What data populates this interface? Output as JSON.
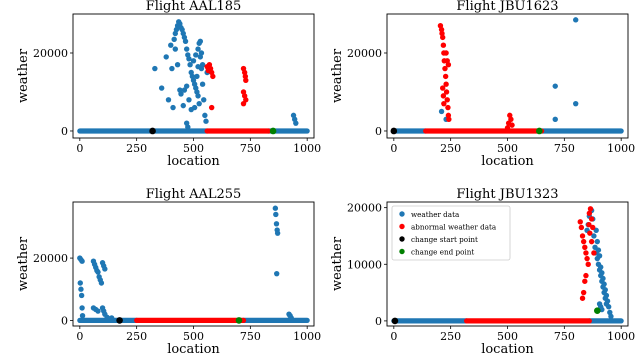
{
  "figure": {
    "legend": {
      "entries": [
        {
          "label": "weather data",
          "color": "#1f77b4"
        },
        {
          "label": "abnormal weather data",
          "color": "#ff0000"
        },
        {
          "label": "change start point",
          "color": "#000000"
        },
        {
          "label": "change end point",
          "color": "#008000"
        }
      ]
    }
  },
  "chart_data": [
    {
      "type": "scatter",
      "title": "Flight AAL185",
      "xlabel": "location",
      "ylabel": "weather",
      "xlim": [
        -30,
        1030
      ],
      "ylim": [
        -1800,
        30000
      ],
      "xticks": [
        0,
        250,
        500,
        750,
        1000
      ],
      "yticks": [
        0,
        20000
      ],
      "grid": false,
      "legend": "none",
      "normal_baseline": [
        [
          0,
          560
        ],
        [
          830,
          1000
        ]
      ],
      "abnormal_baseline": [
        [
          560,
          830
        ]
      ],
      "series": [
        {
          "label": "weather data",
          "color": "#1f77b4",
          "points": [
            [
              330,
              16000
            ],
            [
              360,
              11000
            ],
            [
              380,
              19000
            ],
            [
              390,
              8000
            ],
            [
              400,
              22000
            ],
            [
              405,
              16000
            ],
            [
              410,
              6000
            ],
            [
              415,
              23500
            ],
            [
              420,
              25000
            ],
            [
              425,
              26000
            ],
            [
              430,
              27000
            ],
            [
              435,
              28000
            ],
            [
              440,
              27500
            ],
            [
              445,
              26500
            ],
            [
              450,
              26000
            ],
            [
              455,
              25000
            ],
            [
              460,
              24000
            ],
            [
              465,
              23000
            ],
            [
              470,
              21000
            ],
            [
              475,
              19500
            ],
            [
              480,
              18500
            ],
            [
              485,
              17000
            ],
            [
              490,
              15000
            ],
            [
              495,
              14000
            ],
            [
              500,
              13000
            ],
            [
              505,
              12000
            ],
            [
              510,
              11000
            ],
            [
              515,
              10000
            ],
            [
              520,
              9000
            ],
            [
              525,
              7000
            ],
            [
              505,
              6000
            ],
            [
              490,
              5500
            ],
            [
              480,
              8000
            ],
            [
              470,
              11500
            ],
            [
              460,
              10500
            ],
            [
              455,
              6500
            ],
            [
              470,
              2000
            ],
            [
              475,
              1000
            ],
            [
              430,
              17000
            ],
            [
              420,
              21000
            ],
            [
              445,
              9500
            ],
            [
              440,
              10500
            ],
            [
              500,
              18000
            ],
            [
              510,
              19500
            ],
            [
              520,
              21000
            ],
            [
              525,
              22500
            ],
            [
              530,
              19000
            ],
            [
              535,
              16000
            ],
            [
              540,
              12000
            ],
            [
              545,
              8000
            ],
            [
              550,
              4000
            ],
            [
              555,
              2500
            ],
            [
              515,
              14000
            ],
            [
              520,
              16500
            ],
            [
              530,
              23000
            ],
            [
              535,
              20000
            ],
            [
              540,
              17000
            ],
            [
              560,
              15000
            ],
            [
              565,
              16000
            ],
            [
              570,
              15500
            ],
            [
              940,
              4000
            ],
            [
              945,
              3000
            ],
            [
              950,
              2000
            ]
          ]
        },
        {
          "label": "abnormal weather data",
          "color": "#ff0000",
          "points": [
            [
              560,
              16500
            ],
            [
              565,
              15500
            ],
            [
              570,
              17000
            ],
            [
              575,
              16000
            ],
            [
              580,
              15000
            ],
            [
              585,
              14000
            ],
            [
              580,
              6000
            ],
            [
              720,
              16000
            ],
            [
              725,
              15000
            ],
            [
              728,
              14000
            ],
            [
              730,
              13000
            ],
            [
              720,
              10000
            ],
            [
              725,
              9000
            ],
            [
              730,
              8000
            ],
            [
              720,
              7000
            ]
          ]
        },
        {
          "label": "change start point",
          "color": "#000000",
          "points": [
            [
              320,
              0
            ]
          ]
        },
        {
          "label": "change end point",
          "color": "#008000",
          "points": [
            [
              850,
              0
            ]
          ]
        }
      ]
    },
    {
      "type": "scatter",
      "title": "Flight JBU1623",
      "xlabel": "location",
      "ylabel": "weather",
      "xlim": [
        -30,
        1030
      ],
      "ylim": [
        -1800,
        30000
      ],
      "xticks": [
        0,
        250,
        500,
        750,
        1000
      ],
      "yticks": [
        0,
        20000
      ],
      "grid": false,
      "legend": "none",
      "normal_baseline": [
        [
          0,
          140
        ],
        [
          650,
          1000
        ]
      ],
      "abnormal_baseline": [
        [
          140,
          650
        ]
      ],
      "series": [
        {
          "label": "weather data",
          "color": "#1f77b4",
          "points": [
            [
              710,
              11500
            ],
            [
              710,
              3000
            ],
            [
              800,
              28500
            ],
            [
              800,
              7000
            ],
            [
              210,
              5000
            ],
            [
              230,
              3000
            ]
          ]
        },
        {
          "label": "abnormal weather data",
          "color": "#ff0000",
          "points": [
            [
              205,
              27000
            ],
            [
              210,
              26000
            ],
            [
              212,
              25000
            ],
            [
              215,
              24000
            ],
            [
              218,
              22000
            ],
            [
              220,
              20000
            ],
            [
              222,
              18000
            ],
            [
              225,
              16000
            ],
            [
              228,
              14000
            ],
            [
              230,
              12000
            ],
            [
              232,
              10000
            ],
            [
              235,
              8000
            ],
            [
              238,
              6000
            ],
            [
              240,
              4000
            ],
            [
              242,
              3000
            ],
            [
              215,
              11000
            ],
            [
              218,
              9000
            ],
            [
              220,
              7000
            ],
            [
              230,
              20000
            ],
            [
              235,
              18000
            ],
            [
              240,
              17000
            ],
            [
              510,
              4000
            ],
            [
              515,
              3000
            ],
            [
              505,
              2000
            ],
            [
              520,
              1500
            ],
            [
              500,
              800
            ]
          ]
        },
        {
          "label": "change start point",
          "color": "#000000",
          "points": [
            [
              0,
              0
            ]
          ]
        },
        {
          "label": "change end point",
          "color": "#008000",
          "points": [
            [
              640,
              0
            ]
          ]
        }
      ]
    },
    {
      "type": "scatter",
      "title": "Flight AAL255",
      "xlabel": "location",
      "ylabel": "weather",
      "xlim": [
        -30,
        1030
      ],
      "ylim": [
        -1800,
        38000
      ],
      "xticks": [
        0,
        250,
        500,
        750,
        1000
      ],
      "yticks": [
        0,
        20000
      ],
      "grid": false,
      "legend": "none",
      "normal_baseline": [
        [
          0,
          250
        ],
        [
          720,
          1000
        ]
      ],
      "abnormal_baseline": [
        [
          250,
          720
        ]
      ],
      "series": [
        {
          "label": "weather data",
          "color": "#1f77b4",
          "points": [
            [
              0,
              20000
            ],
            [
              5,
              19500
            ],
            [
              10,
              19000
            ],
            [
              2,
              12000
            ],
            [
              5,
              10000
            ],
            [
              8,
              8000
            ],
            [
              10,
              4000
            ],
            [
              12,
              1500
            ],
            [
              60,
              19000
            ],
            [
              65,
              18000
            ],
            [
              70,
              17000
            ],
            [
              75,
              16000
            ],
            [
              80,
              15500
            ],
            [
              85,
              14000
            ],
            [
              90,
              13000
            ],
            [
              95,
              12000
            ],
            [
              100,
              18500
            ],
            [
              105,
              17500
            ],
            [
              110,
              16500
            ],
            [
              60,
              4000
            ],
            [
              70,
              3500
            ],
            [
              80,
              3000
            ],
            [
              100,
              4000
            ],
            [
              105,
              3000
            ],
            [
              110,
              2000
            ],
            [
              120,
              1000
            ],
            [
              140,
              800
            ],
            [
              860,
              36000
            ],
            [
              862,
              34000
            ],
            [
              865,
              31000
            ],
            [
              868,
              29000
            ],
            [
              870,
              28000
            ],
            [
              866,
              15000
            ],
            [
              920,
              2000
            ],
            [
              925,
              1500
            ],
            [
              930,
              800
            ]
          ]
        },
        {
          "label": "abnormal weather data",
          "color": "#ff0000",
          "points": []
        },
        {
          "label": "change start point",
          "color": "#000000",
          "points": [
            [
              175,
              0
            ]
          ]
        },
        {
          "label": "change end point",
          "color": "#008000",
          "points": [
            [
              700,
              0
            ]
          ]
        }
      ]
    },
    {
      "type": "scatter",
      "title": "Flight JBU1323",
      "xlabel": "location",
      "ylabel": "weather",
      "xlim": [
        -30,
        1030
      ],
      "ylim": [
        -900,
        21000
      ],
      "xticks": [
        0,
        250,
        500,
        750,
        1000
      ],
      "yticks": [
        0,
        10000,
        20000
      ],
      "grid": false,
      "legend": "upper left",
      "normal_baseline": [
        [
          0,
          320
        ],
        [
          860,
          1000
        ]
      ],
      "abnormal_baseline": [
        [
          320,
          860
        ]
      ],
      "series": [
        {
          "label": "weather data",
          "color": "#1f77b4",
          "points": [
            [
              850,
              16000
            ],
            [
              855,
              17000
            ],
            [
              860,
              18500
            ],
            [
              870,
              19500
            ],
            [
              875,
              18000
            ],
            [
              880,
              15000
            ],
            [
              885,
              13000
            ],
            [
              890,
              12000
            ],
            [
              895,
              11000
            ],
            [
              900,
              10000
            ],
            [
              905,
              9000
            ],
            [
              910,
              8000
            ],
            [
              915,
              7000
            ],
            [
              920,
              6000
            ],
            [
              925,
              5000
            ],
            [
              930,
              4000
            ],
            [
              935,
              3000
            ],
            [
              890,
              16000
            ],
            [
              895,
              14000
            ],
            [
              900,
              12500
            ],
            [
              905,
              11500
            ],
            [
              910,
              9500
            ],
            [
              915,
              8500
            ],
            [
              920,
              7500
            ],
            [
              925,
              6500
            ],
            [
              930,
              5500
            ],
            [
              935,
              4500
            ],
            [
              940,
              3500
            ],
            [
              945,
              2500
            ],
            [
              950,
              1500
            ],
            [
              955,
              800
            ],
            [
              905,
              3000
            ],
            [
              910,
              2500
            ],
            [
              915,
              2000
            ]
          ]
        },
        {
          "label": "abnormal weather data",
          "color": "#ff0000",
          "points": [
            [
              820,
              17500
            ],
            [
              825,
              16500
            ],
            [
              830,
              15000
            ],
            [
              835,
              14000
            ],
            [
              840,
              13000
            ],
            [
              845,
              12000
            ],
            [
              850,
              11000
            ],
            [
              855,
              10000
            ],
            [
              860,
              19000
            ],
            [
              865,
              19800
            ],
            [
              870,
              18000
            ],
            [
              875,
              16500
            ],
            [
              845,
              8000
            ],
            [
              840,
              7000
            ],
            [
              835,
              5000
            ],
            [
              830,
              4000
            ],
            [
              880,
              12000
            ],
            [
              870,
              14000
            ],
            [
              858,
              17000
            ],
            [
              862,
              15500
            ]
          ]
        },
        {
          "label": "change start point",
          "color": "#000000",
          "points": [
            [
              5,
              0
            ]
          ]
        },
        {
          "label": "change end point",
          "color": "#008000",
          "points": [
            [
              895,
              1800
            ]
          ]
        }
      ]
    }
  ]
}
